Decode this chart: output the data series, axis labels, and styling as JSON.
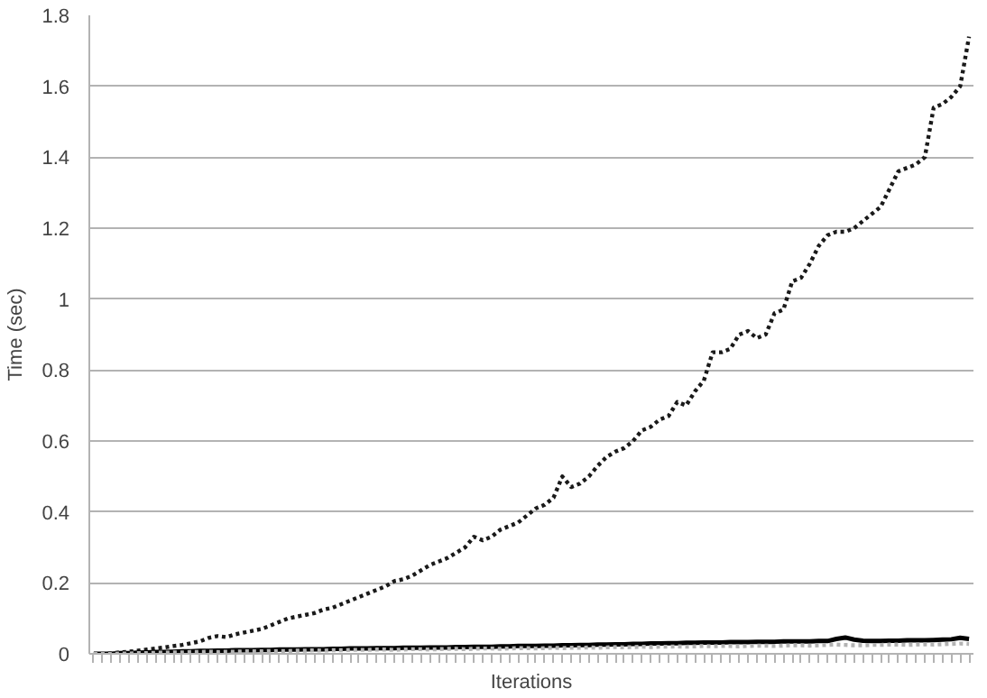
{
  "chart_data": {
    "type": "line",
    "xlabel": "Iterations",
    "ylabel": "Time (sec)",
    "categories": [
      null,
      null,
      null,
      null,
      null,
      null,
      null,
      null,
      null,
      null,
      null,
      null,
      null,
      null,
      null,
      null,
      null,
      null,
      null,
      null,
      null,
      null,
      null,
      null,
      null,
      null,
      null,
      null,
      null,
      null,
      null,
      null,
      null,
      null,
      null,
      null,
      null,
      null,
      null,
      null,
      null,
      null,
      null,
      null,
      null,
      null,
      null,
      null,
      null,
      null,
      null,
      null,
      null,
      null,
      null,
      null,
      null,
      null,
      null,
      null,
      null,
      null,
      null,
      null,
      null,
      null,
      null,
      null,
      null,
      null,
      null,
      null,
      null,
      null,
      null,
      null,
      null,
      null,
      null,
      null,
      null,
      null,
      null,
      null,
      null,
      null,
      null,
      null,
      null,
      null,
      null,
      null,
      null,
      null,
      null,
      null,
      null,
      null,
      null,
      null
    ],
    "ylim": [
      0,
      1.8
    ],
    "yticks": [
      0,
      0.2,
      0.4,
      0.6,
      0.8,
      1,
      1.2,
      1.4,
      1.6,
      1.8
    ],
    "grid": "y",
    "marker": "none",
    "series": [
      {
        "color": "#1a1a1a",
        "line_style": "dotted",
        "values": [
          0.0,
          0.0,
          0.002,
          0.004,
          0.006,
          0.009,
          0.012,
          0.015,
          0.018,
          0.022,
          0.025,
          0.03,
          0.035,
          0.045,
          0.05,
          0.047,
          0.055,
          0.06,
          0.065,
          0.07,
          0.08,
          0.09,
          0.1,
          0.105,
          0.11,
          0.115,
          0.125,
          0.13,
          0.14,
          0.15,
          0.16,
          0.17,
          0.18,
          0.19,
          0.205,
          0.21,
          0.22,
          0.235,
          0.25,
          0.26,
          0.27,
          0.285,
          0.3,
          0.33,
          0.32,
          0.33,
          0.35,
          0.36,
          0.37,
          0.39,
          0.41,
          0.42,
          0.44,
          0.5,
          0.47,
          0.48,
          0.5,
          0.53,
          0.555,
          0.57,
          0.58,
          0.6,
          0.63,
          0.64,
          0.66,
          0.67,
          0.71,
          0.7,
          0.74,
          0.77,
          0.85,
          0.85,
          0.86,
          0.9,
          0.91,
          0.89,
          0.9,
          0.96,
          0.97,
          1.05,
          1.06,
          1.1,
          1.15,
          1.18,
          1.19,
          1.19,
          1.2,
          1.22,
          1.24,
          1.26,
          1.31,
          1.36,
          1.37,
          1.38,
          1.4,
          1.54,
          1.55,
          1.57,
          1.6,
          1.74
        ]
      },
      {
        "color": "#000000",
        "line_style": "solid",
        "values": [
          0,
          0,
          0,
          0.002,
          0.002,
          0.003,
          0.004,
          0.005,
          0.005,
          0.006,
          0.007,
          0.007,
          0.008,
          0.008,
          0.009,
          0.009,
          0.01,
          0.01,
          0.01,
          0.011,
          0.011,
          0.012,
          0.012,
          0.012,
          0.013,
          0.013,
          0.013,
          0.014,
          0.014,
          0.015,
          0.015,
          0.015,
          0.016,
          0.016,
          0.016,
          0.017,
          0.017,
          0.017,
          0.018,
          0.018,
          0.018,
          0.019,
          0.019,
          0.02,
          0.02,
          0.02,
          0.021,
          0.021,
          0.022,
          0.022,
          0.022,
          0.023,
          0.023,
          0.024,
          0.024,
          0.025,
          0.025,
          0.026,
          0.026,
          0.027,
          0.027,
          0.028,
          0.028,
          0.029,
          0.029,
          0.03,
          0.03,
          0.031,
          0.031,
          0.032,
          0.032,
          0.032,
          0.033,
          0.033,
          0.033,
          0.034,
          0.034,
          0.034,
          0.035,
          0.035,
          0.035,
          0.035,
          0.036,
          0.036,
          0.042,
          0.046,
          0.04,
          0.037,
          0.036,
          0.036,
          0.037,
          0.037,
          0.038,
          0.038,
          0.038,
          0.039,
          0.04,
          0.041,
          0.045,
          0.042
        ]
      },
      {
        "color": "#b3b3b3",
        "line_style": "dotted",
        "values": [
          0,
          0,
          0,
          0.001,
          0.001,
          0.002,
          0.002,
          0.003,
          0.003,
          0.004,
          0.004,
          0.005,
          0.005,
          0.006,
          0.005,
          0.006,
          0.006,
          0.007,
          0.007,
          0.007,
          0.008,
          0.008,
          0.008,
          0.009,
          0.009,
          0.01,
          0.009,
          0.01,
          0.01,
          0.011,
          0.011,
          0.011,
          0.012,
          0.012,
          0.011,
          0.012,
          0.013,
          0.013,
          0.012,
          0.013,
          0.014,
          0.014,
          0.013,
          0.014,
          0.015,
          0.015,
          0.014,
          0.015,
          0.016,
          0.016,
          0.015,
          0.016,
          0.017,
          0.016,
          0.017,
          0.017,
          0.018,
          0.017,
          0.018,
          0.019,
          0.018,
          0.019,
          0.02,
          0.019,
          0.02,
          0.02,
          0.021,
          0.02,
          0.021,
          0.022,
          0.021,
          0.022,
          0.022,
          0.021,
          0.022,
          0.023,
          0.023,
          0.022,
          0.023,
          0.024,
          0.024,
          0.023,
          0.024,
          0.025,
          0.026,
          0.025,
          0.024,
          0.024,
          0.025,
          0.025,
          0.026,
          0.026,
          0.025,
          0.026,
          0.027,
          0.026,
          0.027,
          0.028,
          0.029,
          0.028
        ]
      }
    ]
  }
}
